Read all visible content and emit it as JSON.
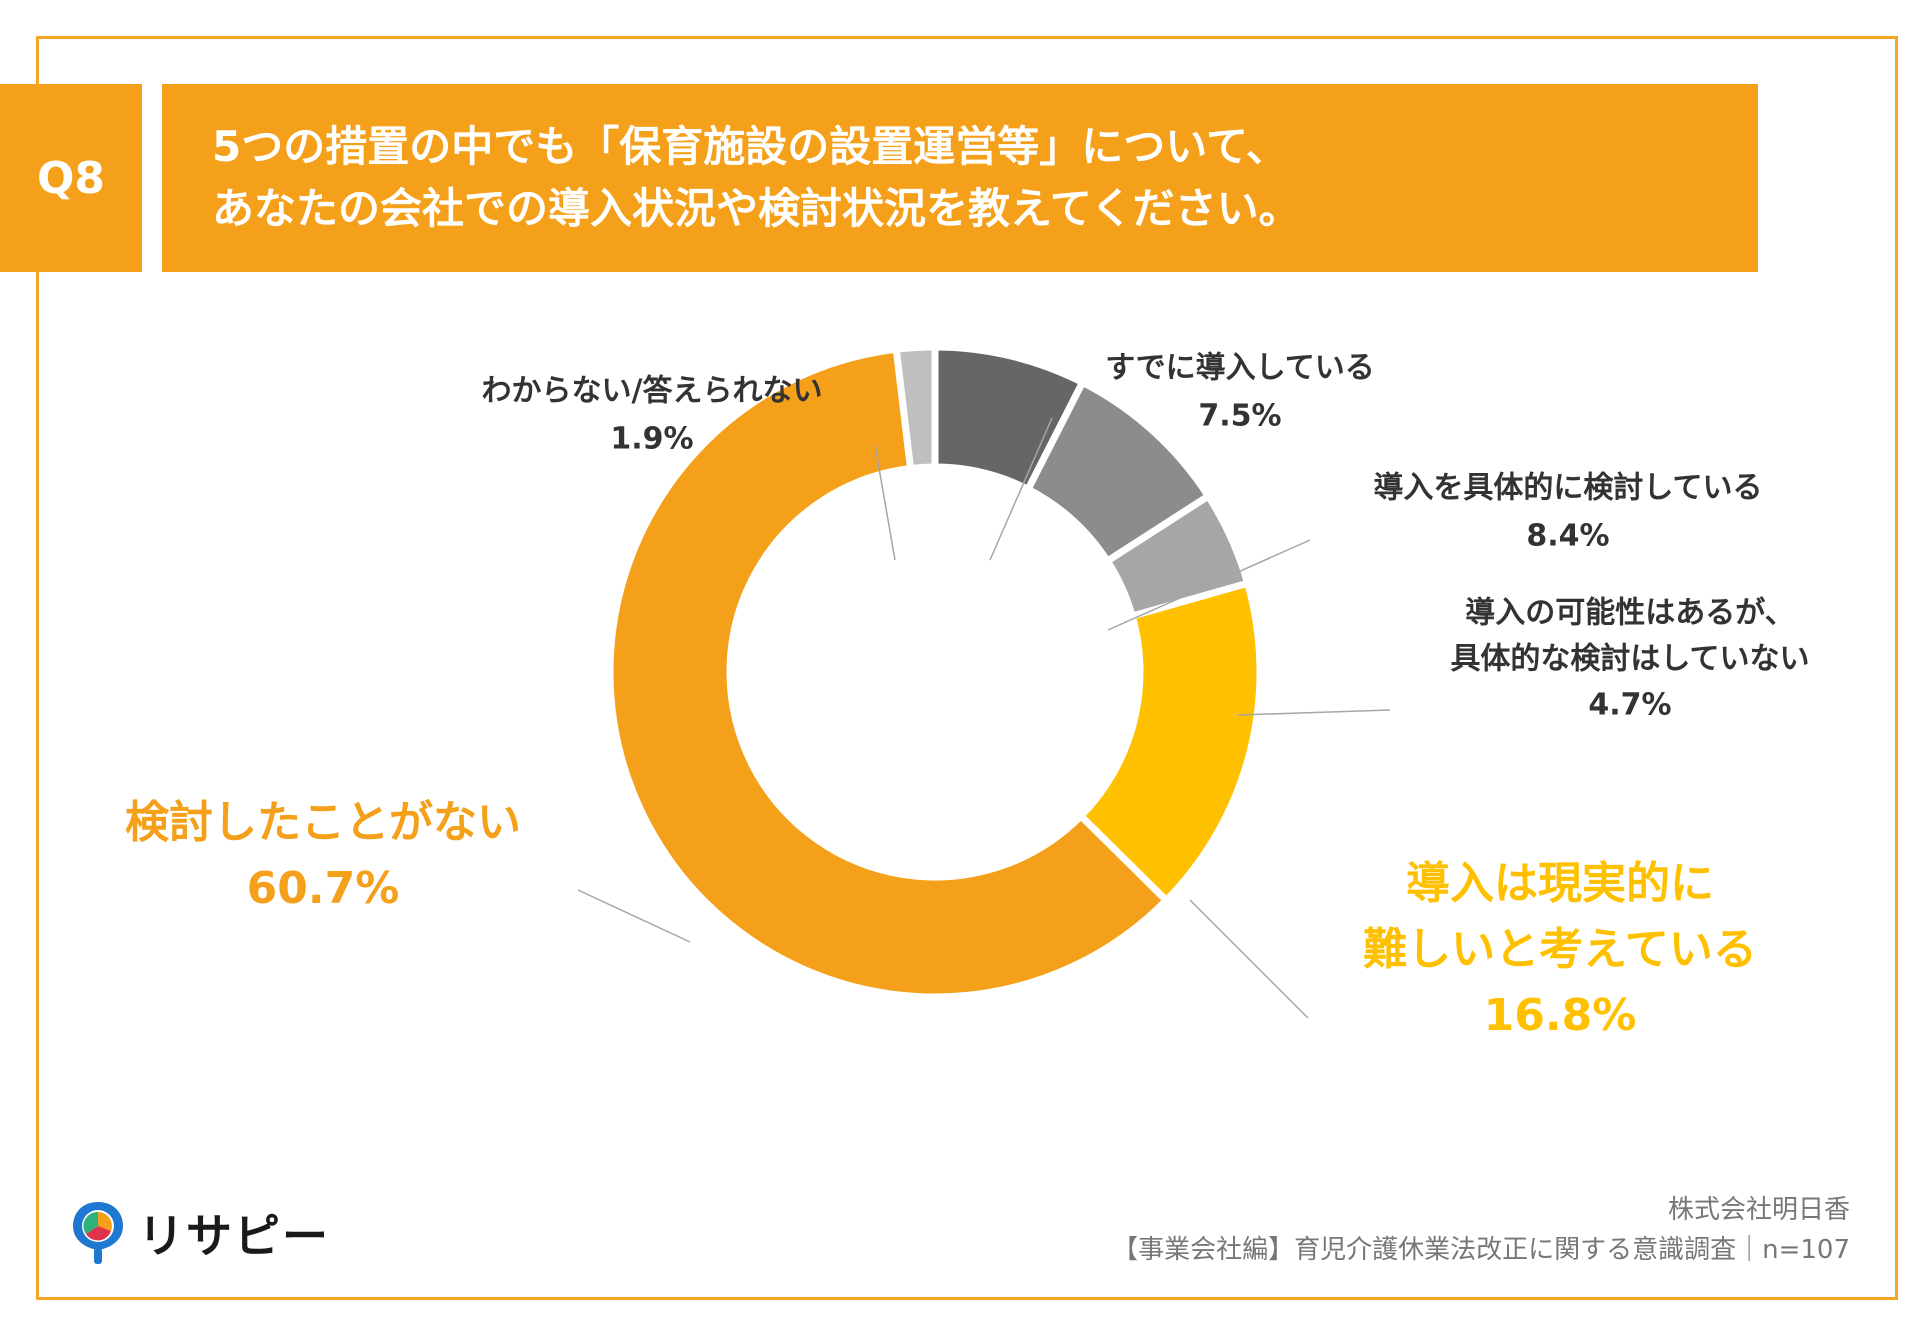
{
  "header": {
    "badge": "Q8",
    "question_line1": "5つの措置の中でも「保育施設の設置運営等」について、",
    "question_line2": "あなたの会社での導入状況や検討状況を教えてください。"
  },
  "chart_data": {
    "type": "pie",
    "donut": true,
    "unit": "%",
    "slices": [
      {
        "label_lines": [
          "すでに導入している"
        ],
        "value_text": "7.5%",
        "value": 7.5,
        "color": "#666666"
      },
      {
        "label_lines": [
          "導入を具体的に検討している"
        ],
        "value_text": "8.4%",
        "value": 8.4,
        "color": "#8C8C8C"
      },
      {
        "label_lines": [
          "導入の可能性はあるが、",
          "具体的な検討はしていない"
        ],
        "value_text": "4.7%",
        "value": 4.7,
        "color": "#A6A6A6"
      },
      {
        "label_lines": [
          "導入は現実的に",
          "難しいと考えている"
        ],
        "value_text": "16.8%",
        "value": 16.8,
        "color": "#FFC000"
      },
      {
        "label_lines": [
          "検討したことがない"
        ],
        "value_text": "60.7%",
        "value": 60.7,
        "color": "#F5A01A"
      },
      {
        "label_lines": [
          "わからない/答えられない"
        ],
        "value_text": "1.9%",
        "value": 1.9,
        "color": "#BFBFBF"
      }
    ]
  },
  "footer": {
    "company": "株式会社明日香",
    "survey": "【事業会社編】育児介護休業法改正に関する意識調査｜n=107",
    "logo_text": "リサピー"
  },
  "colors": {
    "accent": "#F5A01A",
    "frame": "#F5A623",
    "label_dark": "#333333",
    "label_orange": "#F5A01A",
    "label_yellow": "#FFC000"
  }
}
